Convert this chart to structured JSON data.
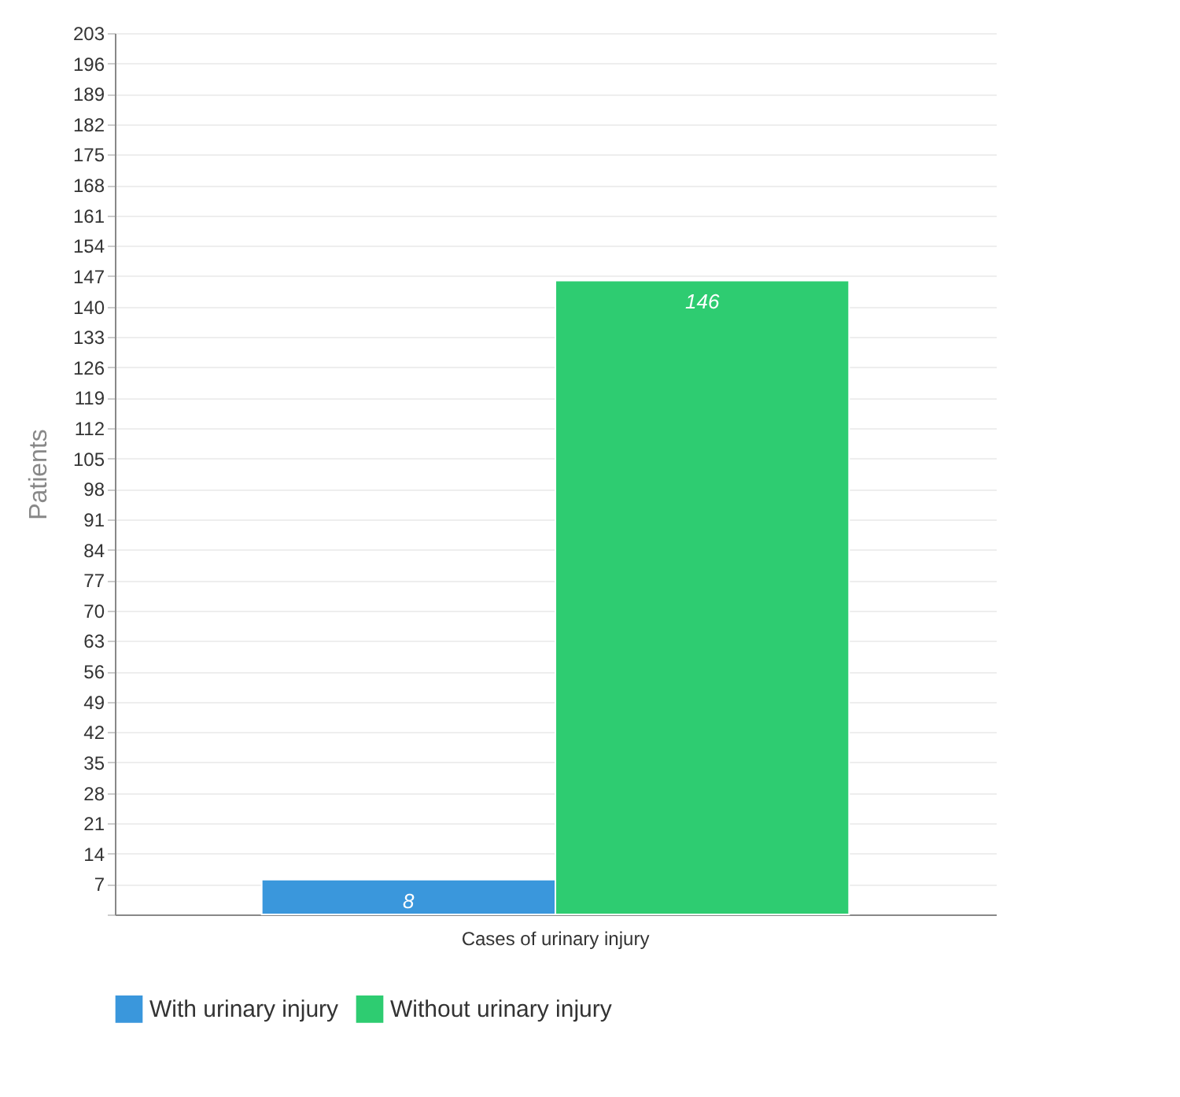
{
  "chart_data": {
    "type": "bar",
    "ylabel": "Patients",
    "categories": [
      "Cases of urinary injury"
    ],
    "series": [
      {
        "name": "With urinary injury",
        "color": "#3a97dc",
        "values": [
          8
        ]
      },
      {
        "name": "Without urinary injury",
        "color": "#2ecc71",
        "values": [
          146
        ]
      }
    ],
    "ylim": [
      0,
      203
    ],
    "yticks": [
      {
        "value": 0,
        "label": null
      },
      7,
      14,
      21,
      28,
      35,
      42,
      49,
      56,
      63,
      70,
      77,
      84,
      91,
      98,
      105,
      112,
      119,
      126,
      133,
      140,
      147,
      154,
      161,
      168,
      175,
      182,
      189,
      196,
      203
    ],
    "grid": "y",
    "legend": "bottom",
    "data_labels": true
  }
}
